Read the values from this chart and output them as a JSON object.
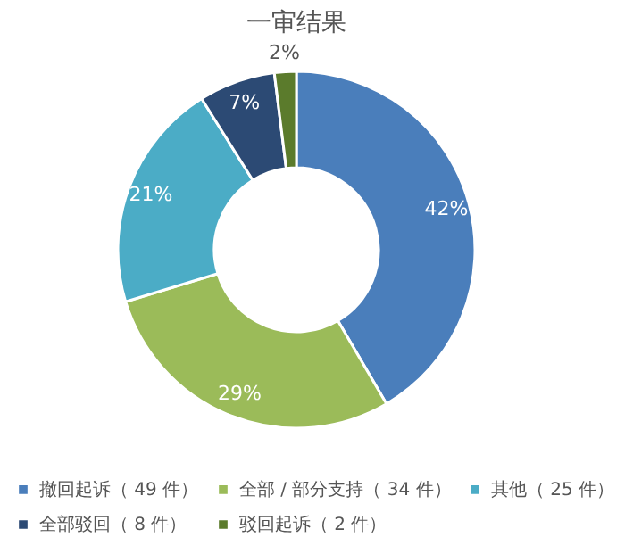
{
  "chart_data": {
    "type": "donut",
    "title": "一审结果",
    "categories": [
      "撤回起诉（ 49 件）",
      "全部 / 部分支持（ 34 件）",
      "其他（ 25 件）",
      "全部驳回（ 8 件）",
      "驳回起诉（ 2 件）"
    ],
    "values": [
      42,
      29,
      21,
      7,
      2
    ],
    "value_labels": [
      "42%",
      "29%",
      "21%",
      "7%",
      "2%"
    ],
    "colors": [
      "#4a7ebb",
      "#9bbb59",
      "#4bacc6",
      "#2c4a74",
      "#5b7b2c"
    ],
    "legend": "bottom"
  }
}
